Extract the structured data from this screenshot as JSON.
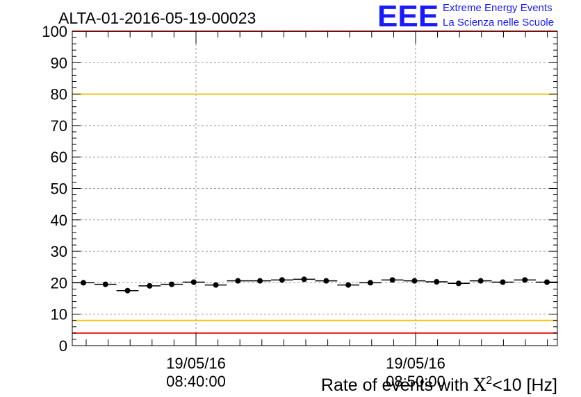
{
  "title": "ALTA-01-2016-05-19-00023",
  "logo": {
    "mark": "EEE",
    "line1": "Extreme Energy Events",
    "line2": "La Scienza nelle Scuole",
    "color": "#1a1aff"
  },
  "chart_data": {
    "type": "scatter",
    "title": "ALTA-01-2016-05-19-00023",
    "xlabel_prefix": "Rate of events with ",
    "xlabel_symbol": "X",
    "xlabel_sup": "2",
    "xlabel_suffix": "<10 [Hz]",
    "ylabel": "",
    "ylim": [
      0,
      100
    ],
    "y_ticks": [
      "0",
      "10",
      "20",
      "30",
      "40",
      "50",
      "60",
      "70",
      "80",
      "90",
      "100"
    ],
    "x_tick_labels": [
      {
        "date": "19/05/16",
        "time": "08:40:00"
      },
      {
        "date": "19/05/16",
        "time": "08:50:00"
      }
    ],
    "grid": true,
    "reference_lines": [
      {
        "value": 100,
        "color": "#e8201f"
      },
      {
        "value": 80,
        "color": "#f2c21b"
      },
      {
        "value": 8,
        "color": "#f2c21b"
      },
      {
        "value": 4,
        "color": "#e8201f"
      }
    ],
    "series": [
      {
        "name": "rate",
        "values": [
          20.0,
          19.5,
          17.5,
          19.0,
          19.5,
          20.2,
          19.3,
          20.6,
          20.6,
          20.9,
          21.1,
          20.6,
          19.3,
          20.0,
          20.9,
          20.6,
          20.3,
          19.8,
          20.6,
          20.2,
          20.9,
          20.2
        ],
        "errors": [
          0.3,
          0.3,
          0.3,
          0.3,
          0.3,
          0.3,
          0.3,
          0.3,
          0.3,
          0.3,
          0.3,
          0.3,
          0.3,
          0.3,
          0.3,
          0.3,
          0.3,
          0.3,
          0.3,
          0.3,
          0.3,
          0.3
        ]
      }
    ]
  }
}
